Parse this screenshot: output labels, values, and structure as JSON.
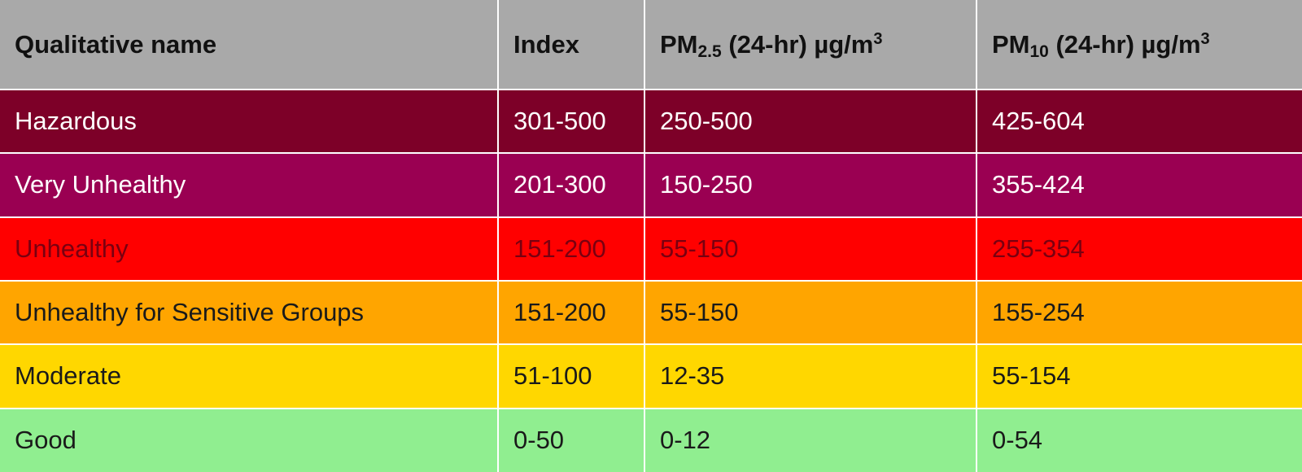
{
  "table": {
    "headers": {
      "qualitative_name": "Qualitative name",
      "index": "Index",
      "pm25": {
        "prefix": "PM",
        "sub": "2.5",
        "suffix": " (24-hr) µg/m",
        "sup": "3"
      },
      "pm10": {
        "prefix": "PM",
        "sub": "10",
        "suffix": " (24-hr) µg/m",
        "sup": "3"
      }
    },
    "rows": [
      {
        "name": "Hazardous",
        "index": "301-500",
        "pm25": "250-500",
        "pm10": "425-604",
        "bg": "#7d0028",
        "fg": "#ffffff"
      },
      {
        "name": "Very Unhealthy",
        "index": "201-300",
        "pm25": "150-250",
        "pm10": "355-424",
        "bg": "#9a0052",
        "fg": "#ffffff"
      },
      {
        "name": "Unhealthy",
        "index": "151-200",
        "pm25": "55-150",
        "pm10": "255-354",
        "bg": "#ff0000",
        "fg": "#7a0010"
      },
      {
        "name": "Unhealthy for Sensitive Groups",
        "index": "151-200",
        "pm25": "55-150",
        "pm10": "155-254",
        "bg": "#ffa500",
        "fg": "#1a1a1a"
      },
      {
        "name": "Moderate",
        "index": "51-100",
        "pm25": "12-35",
        "pm10": "55-154",
        "bg": "#ffd700",
        "fg": "#1a1a1a"
      },
      {
        "name": "Good",
        "index": "0-50",
        "pm25": "0-12",
        "pm10": "0-54",
        "bg": "#90ee90",
        "fg": "#1a1a1a"
      }
    ]
  }
}
